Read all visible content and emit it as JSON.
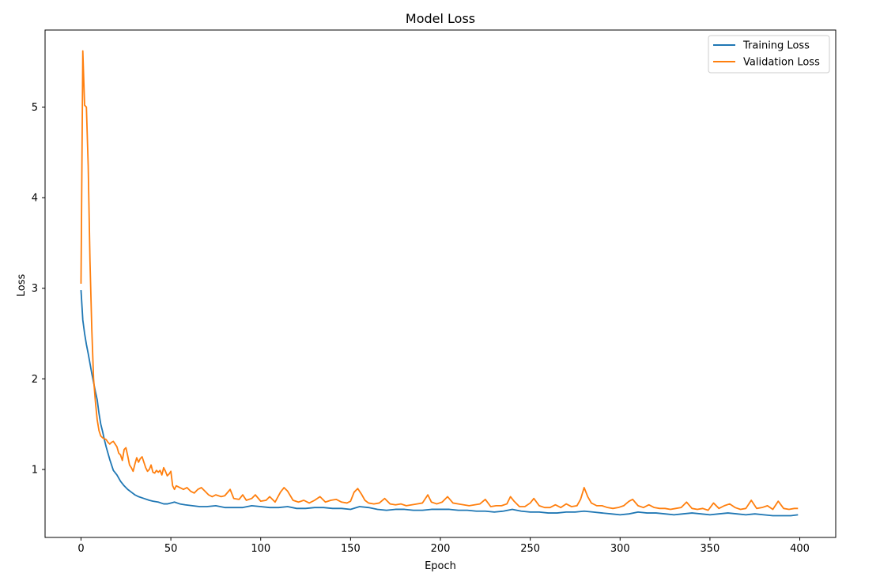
{
  "chart_data": {
    "type": "line",
    "title": "Model Loss",
    "xlabel": "Epoch",
    "ylabel": "Loss",
    "xlim": [
      -20,
      420
    ],
    "ylim": [
      0.25,
      5.85
    ],
    "xticks": [
      0,
      50,
      100,
      150,
      200,
      250,
      300,
      350,
      400
    ],
    "yticks": [
      1,
      2,
      3,
      4,
      5
    ],
    "grid": false,
    "legend_position": "top-right",
    "series": [
      {
        "name": "Training Loss",
        "color": "#1f77b4",
        "points": [
          [
            0,
            2.98
          ],
          [
            1,
            2.65
          ],
          [
            2,
            2.5
          ],
          [
            3,
            2.38
          ],
          [
            4,
            2.28
          ],
          [
            5,
            2.17
          ],
          [
            6,
            2.06
          ],
          [
            7,
            1.96
          ],
          [
            8,
            1.86
          ],
          [
            9,
            1.77
          ],
          [
            10,
            1.62
          ],
          [
            11,
            1.5
          ],
          [
            12,
            1.42
          ],
          [
            13,
            1.33
          ],
          [
            14,
            1.25
          ],
          [
            15,
            1.18
          ],
          [
            16,
            1.11
          ],
          [
            17,
            1.05
          ],
          [
            18,
            0.99
          ],
          [
            20,
            0.94
          ],
          [
            22,
            0.87
          ],
          [
            24,
            0.82
          ],
          [
            26,
            0.78
          ],
          [
            28,
            0.75
          ],
          [
            30,
            0.72
          ],
          [
            32,
            0.7
          ],
          [
            35,
            0.68
          ],
          [
            38,
            0.66
          ],
          [
            40,
            0.65
          ],
          [
            43,
            0.64
          ],
          [
            46,
            0.62
          ],
          [
            48,
            0.62
          ],
          [
            50,
            0.63
          ],
          [
            52,
            0.64
          ],
          [
            55,
            0.62
          ],
          [
            58,
            0.61
          ],
          [
            62,
            0.6
          ],
          [
            66,
            0.59
          ],
          [
            70,
            0.59
          ],
          [
            75,
            0.6
          ],
          [
            80,
            0.58
          ],
          [
            85,
            0.58
          ],
          [
            90,
            0.58
          ],
          [
            95,
            0.6
          ],
          [
            100,
            0.59
          ],
          [
            105,
            0.58
          ],
          [
            110,
            0.58
          ],
          [
            115,
            0.59
          ],
          [
            120,
            0.57
          ],
          [
            125,
            0.57
          ],
          [
            130,
            0.58
          ],
          [
            135,
            0.58
          ],
          [
            140,
            0.57
          ],
          [
            145,
            0.57
          ],
          [
            150,
            0.56
          ],
          [
            155,
            0.59
          ],
          [
            160,
            0.58
          ],
          [
            165,
            0.56
          ],
          [
            170,
            0.55
          ],
          [
            175,
            0.56
          ],
          [
            180,
            0.56
          ],
          [
            185,
            0.55
          ],
          [
            190,
            0.55
          ],
          [
            195,
            0.56
          ],
          [
            200,
            0.56
          ],
          [
            205,
            0.56
          ],
          [
            210,
            0.55
          ],
          [
            215,
            0.55
          ],
          [
            220,
            0.54
          ],
          [
            225,
            0.54
          ],
          [
            230,
            0.53
          ],
          [
            235,
            0.54
          ],
          [
            240,
            0.56
          ],
          [
            245,
            0.54
          ],
          [
            250,
            0.53
          ],
          [
            255,
            0.53
          ],
          [
            260,
            0.52
          ],
          [
            265,
            0.52
          ],
          [
            270,
            0.53
          ],
          [
            275,
            0.53
          ],
          [
            280,
            0.54
          ],
          [
            285,
            0.53
          ],
          [
            290,
            0.52
          ],
          [
            295,
            0.51
          ],
          [
            300,
            0.5
          ],
          [
            305,
            0.51
          ],
          [
            310,
            0.53
          ],
          [
            315,
            0.52
          ],
          [
            320,
            0.52
          ],
          [
            325,
            0.51
          ],
          [
            330,
            0.5
          ],
          [
            335,
            0.51
          ],
          [
            340,
            0.52
          ],
          [
            345,
            0.51
          ],
          [
            350,
            0.5
          ],
          [
            355,
            0.51
          ],
          [
            360,
            0.52
          ],
          [
            365,
            0.51
          ],
          [
            370,
            0.5
          ],
          [
            375,
            0.51
          ],
          [
            380,
            0.5
          ],
          [
            385,
            0.49
          ],
          [
            390,
            0.49
          ],
          [
            395,
            0.49
          ],
          [
            399,
            0.5
          ]
        ]
      },
      {
        "name": "Validation Loss",
        "color": "#ff7f0e",
        "points": [
          [
            0,
            3.05
          ],
          [
            1,
            5.62
          ],
          [
            2,
            5.02
          ],
          [
            3,
            5.0
          ],
          [
            4,
            4.35
          ],
          [
            5,
            3.3
          ],
          [
            6,
            2.55
          ],
          [
            7,
            2.0
          ],
          [
            8,
            1.75
          ],
          [
            9,
            1.55
          ],
          [
            10,
            1.43
          ],
          [
            11,
            1.37
          ],
          [
            12,
            1.35
          ],
          [
            14,
            1.33
          ],
          [
            15,
            1.3
          ],
          [
            16,
            1.28
          ],
          [
            17,
            1.3
          ],
          [
            18,
            1.31
          ],
          [
            19,
            1.28
          ],
          [
            20,
            1.25
          ],
          [
            21,
            1.18
          ],
          [
            22,
            1.16
          ],
          [
            23,
            1.1
          ],
          [
            24,
            1.22
          ],
          [
            25,
            1.24
          ],
          [
            26,
            1.15
          ],
          [
            27,
            1.05
          ],
          [
            28,
            1.02
          ],
          [
            29,
            0.98
          ],
          [
            30,
            1.06
          ],
          [
            31,
            1.13
          ],
          [
            32,
            1.08
          ],
          [
            33,
            1.12
          ],
          [
            34,
            1.14
          ],
          [
            35,
            1.08
          ],
          [
            36,
            1.02
          ],
          [
            37,
            0.98
          ],
          [
            38,
            1.0
          ],
          [
            39,
            1.05
          ],
          [
            40,
            0.97
          ],
          [
            41,
            0.96
          ],
          [
            42,
            0.99
          ],
          [
            43,
            0.97
          ],
          [
            44,
            0.99
          ],
          [
            45,
            0.94
          ],
          [
            46,
            1.02
          ],
          [
            47,
            0.98
          ],
          [
            48,
            0.93
          ],
          [
            49,
            0.95
          ],
          [
            50,
            0.98
          ],
          [
            51,
            0.82
          ],
          [
            52,
            0.78
          ],
          [
            53,
            0.82
          ],
          [
            55,
            0.8
          ],
          [
            57,
            0.78
          ],
          [
            59,
            0.8
          ],
          [
            61,
            0.76
          ],
          [
            63,
            0.74
          ],
          [
            65,
            0.78
          ],
          [
            67,
            0.8
          ],
          [
            69,
            0.76
          ],
          [
            71,
            0.72
          ],
          [
            73,
            0.7
          ],
          [
            75,
            0.72
          ],
          [
            78,
            0.7
          ],
          [
            80,
            0.71
          ],
          [
            83,
            0.78
          ],
          [
            85,
            0.68
          ],
          [
            88,
            0.67
          ],
          [
            90,
            0.72
          ],
          [
            92,
            0.66
          ],
          [
            95,
            0.68
          ],
          [
            97,
            0.72
          ],
          [
            100,
            0.65
          ],
          [
            103,
            0.66
          ],
          [
            105,
            0.7
          ],
          [
            108,
            0.64
          ],
          [
            111,
            0.75
          ],
          [
            113,
            0.8
          ],
          [
            115,
            0.76
          ],
          [
            118,
            0.66
          ],
          [
            121,
            0.64
          ],
          [
            124,
            0.66
          ],
          [
            127,
            0.63
          ],
          [
            130,
            0.66
          ],
          [
            133,
            0.7
          ],
          [
            136,
            0.64
          ],
          [
            139,
            0.66
          ],
          [
            142,
            0.67
          ],
          [
            145,
            0.64
          ],
          [
            148,
            0.63
          ],
          [
            150,
            0.65
          ],
          [
            152,
            0.75
          ],
          [
            154,
            0.79
          ],
          [
            156,
            0.73
          ],
          [
            158,
            0.66
          ],
          [
            160,
            0.63
          ],
          [
            163,
            0.62
          ],
          [
            166,
            0.63
          ],
          [
            169,
            0.68
          ],
          [
            172,
            0.62
          ],
          [
            175,
            0.61
          ],
          [
            178,
            0.62
          ],
          [
            181,
            0.6
          ],
          [
            184,
            0.61
          ],
          [
            187,
            0.62
          ],
          [
            190,
            0.63
          ],
          [
            193,
            0.72
          ],
          [
            195,
            0.64
          ],
          [
            198,
            0.62
          ],
          [
            201,
            0.64
          ],
          [
            204,
            0.7
          ],
          [
            207,
            0.63
          ],
          [
            210,
            0.62
          ],
          [
            213,
            0.61
          ],
          [
            216,
            0.6
          ],
          [
            219,
            0.61
          ],
          [
            222,
            0.62
          ],
          [
            225,
            0.67
          ],
          [
            228,
            0.59
          ],
          [
            231,
            0.6
          ],
          [
            234,
            0.6
          ],
          [
            237,
            0.62
          ],
          [
            239,
            0.7
          ],
          [
            241,
            0.65
          ],
          [
            244,
            0.59
          ],
          [
            247,
            0.59
          ],
          [
            250,
            0.63
          ],
          [
            252,
            0.68
          ],
          [
            255,
            0.6
          ],
          [
            258,
            0.58
          ],
          [
            261,
            0.58
          ],
          [
            264,
            0.61
          ],
          [
            267,
            0.58
          ],
          [
            270,
            0.62
          ],
          [
            273,
            0.59
          ],
          [
            276,
            0.6
          ],
          [
            278,
            0.67
          ],
          [
            280,
            0.8
          ],
          [
            282,
            0.7
          ],
          [
            284,
            0.63
          ],
          [
            287,
            0.6
          ],
          [
            290,
            0.6
          ],
          [
            293,
            0.58
          ],
          [
            296,
            0.57
          ],
          [
            299,
            0.58
          ],
          [
            302,
            0.6
          ],
          [
            305,
            0.65
          ],
          [
            307,
            0.67
          ],
          [
            310,
            0.6
          ],
          [
            313,
            0.58
          ],
          [
            316,
            0.61
          ],
          [
            319,
            0.58
          ],
          [
            322,
            0.57
          ],
          [
            325,
            0.57
          ],
          [
            328,
            0.56
          ],
          [
            331,
            0.57
          ],
          [
            334,
            0.58
          ],
          [
            337,
            0.64
          ],
          [
            340,
            0.57
          ],
          [
            343,
            0.56
          ],
          [
            346,
            0.57
          ],
          [
            349,
            0.55
          ],
          [
            352,
            0.63
          ],
          [
            355,
            0.57
          ],
          [
            358,
            0.6
          ],
          [
            361,
            0.62
          ],
          [
            364,
            0.58
          ],
          [
            367,
            0.56
          ],
          [
            370,
            0.57
          ],
          [
            373,
            0.66
          ],
          [
            376,
            0.57
          ],
          [
            379,
            0.58
          ],
          [
            382,
            0.6
          ],
          [
            385,
            0.56
          ],
          [
            388,
            0.65
          ],
          [
            391,
            0.57
          ],
          [
            394,
            0.56
          ],
          [
            397,
            0.57
          ],
          [
            399,
            0.57
          ]
        ]
      }
    ]
  }
}
